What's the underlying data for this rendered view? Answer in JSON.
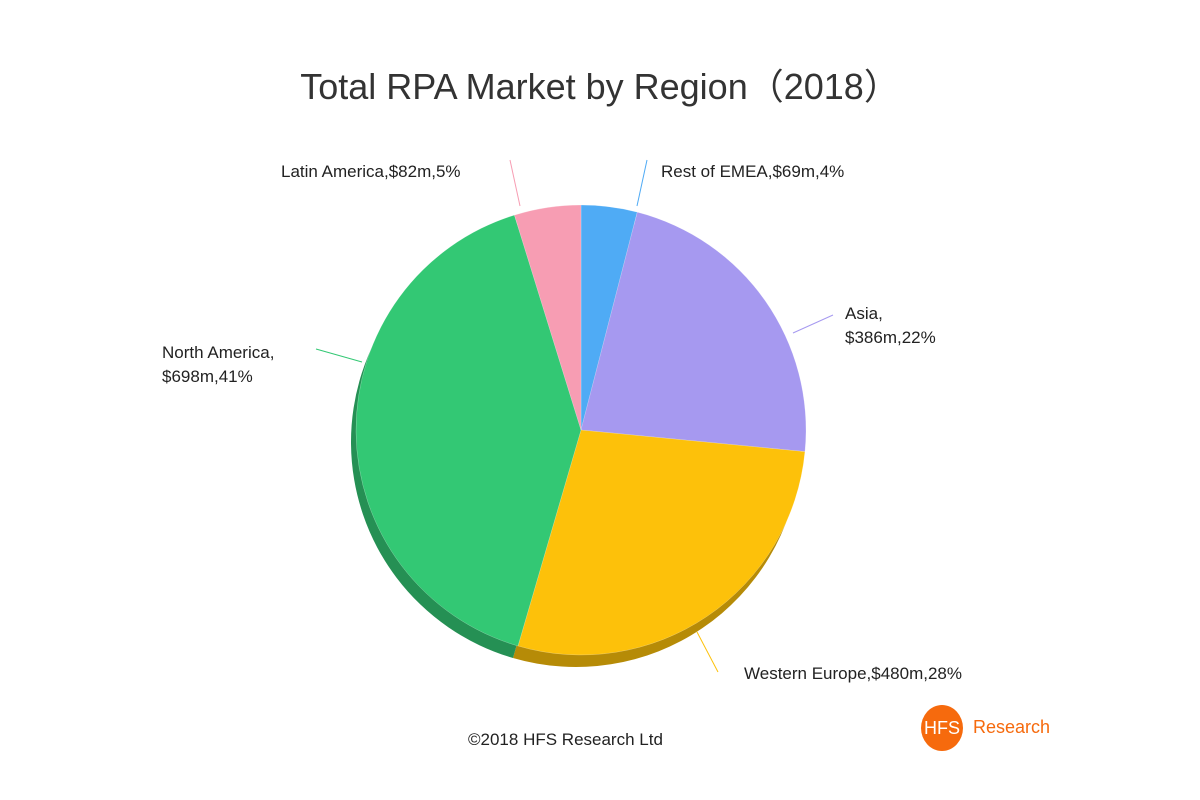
{
  "chart_data": {
    "type": "pie",
    "title": "Total RPA Market by Region（2018）",
    "slices": [
      {
        "name": "Rest of EMEA",
        "value": 69,
        "label": "Rest of EMEA,$69m,4%",
        "color": "#4fabf5"
      },
      {
        "name": "Asia",
        "value": 386,
        "label_line1": "Asia,",
        "label_line2": "$386m,22%",
        "color": "#a699f0"
      },
      {
        "name": "Western Europe",
        "value": 480,
        "label": "Western Europe,$480m,28%",
        "color": "#fdc10a"
      },
      {
        "name": "North America",
        "value": 698,
        "label_line1": "North America,",
        "label_line2": "$698m,41%",
        "color": "#33c874"
      },
      {
        "name": "Latin America",
        "value": 82,
        "label": "Latin America,$82m,5%",
        "color": "#f79db3"
      }
    ],
    "units": "$m",
    "legend": "none",
    "style": "3d-shadow"
  },
  "footer": {
    "copyright": "©2018 HFS Research Ltd"
  },
  "logo": {
    "mark": "HFS",
    "text": "Research",
    "color": "#f66a0d"
  }
}
